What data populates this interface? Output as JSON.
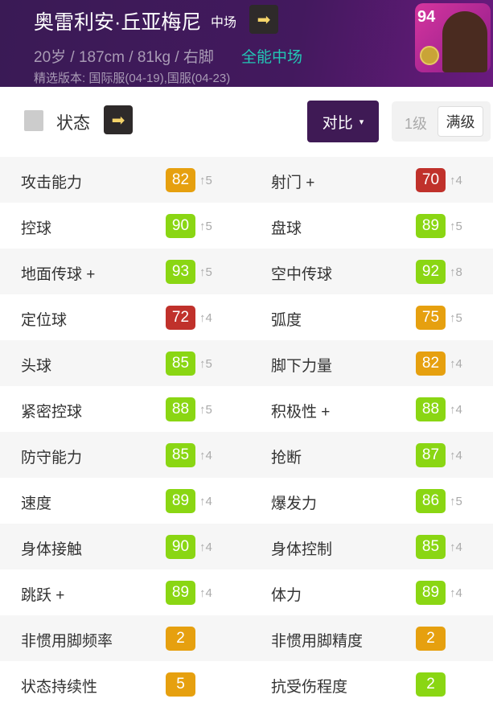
{
  "header": {
    "name": "奥雷利安·丘亚梅尼",
    "position": "中场",
    "info": "20岁 / 187cm / 81kg / 右脚",
    "role": "全能中场",
    "version": "精选版本: 国际服(04-19),国服(04-23)",
    "rating": "94"
  },
  "section": {
    "title": "状态",
    "compare": "对比",
    "compare_caret": "▾",
    "level_1": "1级",
    "level_max": "满级"
  },
  "colors": {
    "green": "#8ad613",
    "orange": "#e6a00f",
    "red": "#c0312b"
  },
  "stats": [
    [
      {
        "label": "攻击能力",
        "value": "82",
        "up": "↑5",
        "color": "orange"
      },
      {
        "label": "射门 +",
        "value": "70",
        "up": "↑4",
        "color": "red"
      }
    ],
    [
      {
        "label": "控球",
        "value": "90",
        "up": "↑5",
        "color": "green"
      },
      {
        "label": "盘球",
        "value": "89",
        "up": "↑5",
        "color": "green"
      }
    ],
    [
      {
        "label": "地面传球 +",
        "value": "93",
        "up": "↑5",
        "color": "green"
      },
      {
        "label": "空中传球",
        "value": "92",
        "up": "↑8",
        "color": "green"
      }
    ],
    [
      {
        "label": "定位球",
        "value": "72",
        "up": "↑4",
        "color": "red"
      },
      {
        "label": "弧度",
        "value": "75",
        "up": "↑5",
        "color": "orange"
      }
    ],
    [
      {
        "label": "头球",
        "value": "85",
        "up": "↑5",
        "color": "green"
      },
      {
        "label": "脚下力量",
        "value": "82",
        "up": "↑4",
        "color": "orange"
      }
    ],
    [
      {
        "label": "紧密控球",
        "value": "88",
        "up": "↑5",
        "color": "green"
      },
      {
        "label": "积极性 +",
        "value": "88",
        "up": "↑4",
        "color": "green"
      }
    ],
    [
      {
        "label": "防守能力",
        "value": "85",
        "up": "↑4",
        "color": "green"
      },
      {
        "label": "抢断",
        "value": "87",
        "up": "↑4",
        "color": "green"
      }
    ],
    [
      {
        "label": "速度",
        "value": "89",
        "up": "↑4",
        "color": "green"
      },
      {
        "label": "爆发力",
        "value": "86",
        "up": "↑5",
        "color": "green"
      }
    ],
    [
      {
        "label": "身体接触",
        "value": "90",
        "up": "↑4",
        "color": "green"
      },
      {
        "label": "身体控制",
        "value": "85",
        "up": "↑4",
        "color": "green"
      }
    ],
    [
      {
        "label": "跳跃 +",
        "value": "89",
        "up": "↑4",
        "color": "green"
      },
      {
        "label": "体力",
        "value": "89",
        "up": "↑4",
        "color": "green"
      }
    ],
    [
      {
        "label": "非惯用脚频率",
        "value": "2",
        "up": "",
        "color": "orange"
      },
      {
        "label": "非惯用脚精度",
        "value": "2",
        "up": "",
        "color": "orange"
      }
    ],
    [
      {
        "label": "状态持续性",
        "value": "5",
        "up": "",
        "color": "orange"
      },
      {
        "label": "抗受伤程度",
        "value": "2",
        "up": "",
        "color": "green"
      }
    ]
  ]
}
